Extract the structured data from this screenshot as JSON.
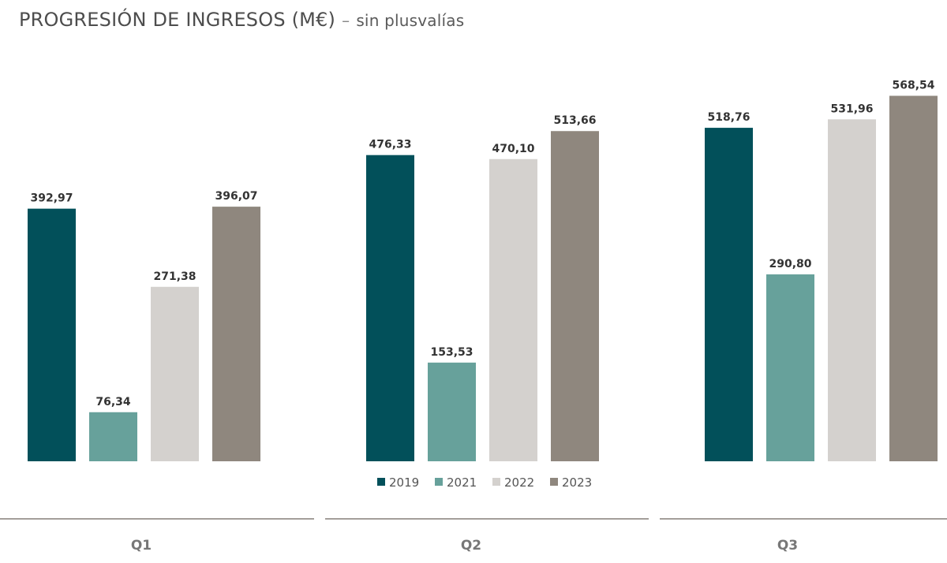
{
  "title": {
    "main": "PROGRESIÓN DE INGRESOS (M€)",
    "separator": "–",
    "subtitle": "sin plusvalías"
  },
  "chart_data": {
    "type": "bar",
    "categories": [
      "Q1",
      "Q2",
      "Q3"
    ],
    "series": [
      {
        "name": "2019",
        "values": [
          392.97,
          476.33,
          518.76
        ],
        "labels": [
          "392,97",
          "476,33",
          "518,76"
        ],
        "color": "#02505a"
      },
      {
        "name": "2021",
        "values": [
          76.34,
          153.53,
          290.8
        ],
        "labels": [
          "76,34",
          "153,53",
          "290,80"
        ],
        "color": "#67a19b"
      },
      {
        "name": "2022",
        "values": [
          271.38,
          470.1,
          531.96
        ],
        "labels": [
          "271,38",
          "470,10",
          "531,96"
        ],
        "color": "#d4d1ce"
      },
      {
        "name": "2023",
        "values": [
          396.07,
          513.66,
          568.54
        ],
        "labels": [
          "396,07",
          "513,66",
          "568,54"
        ],
        "color": "#8f877e"
      }
    ],
    "ylim": [
      0,
      600
    ],
    "grid": false,
    "legend": "bottom-center",
    "category_line_color": "#a39e9a"
  }
}
